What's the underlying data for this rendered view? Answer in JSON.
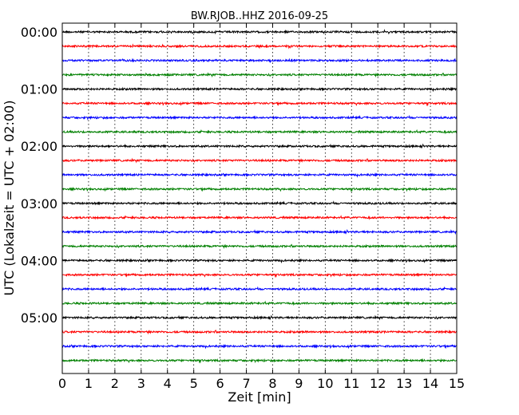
{
  "chart_data": {
    "type": "line",
    "title": "BW.RJOB..HHZ 2016-09-25",
    "xlabel": "Zeit  [min]",
    "ylabel": "UTC (Lokalzeit = UTC + 02:00)",
    "xlim": [
      0,
      15
    ],
    "x_ticks": [
      "0",
      "1",
      "2",
      "3",
      "4",
      "5",
      "6",
      "7",
      "8",
      "9",
      "10",
      "11",
      "12",
      "13",
      "14",
      "15"
    ],
    "y_tick_labels": [
      "00:00",
      "01:00",
      "02:00",
      "03:00",
      "04:00",
      "05:00"
    ],
    "trace_interval_minutes": 15,
    "trace_count": 24,
    "trace_colors": [
      "#000000",
      "#ff0000",
      "#0000ff",
      "#008000"
    ],
    "grid": "vertical dotted at each minute",
    "series": [
      {
        "name": "",
        "values": []
      }
    ]
  }
}
